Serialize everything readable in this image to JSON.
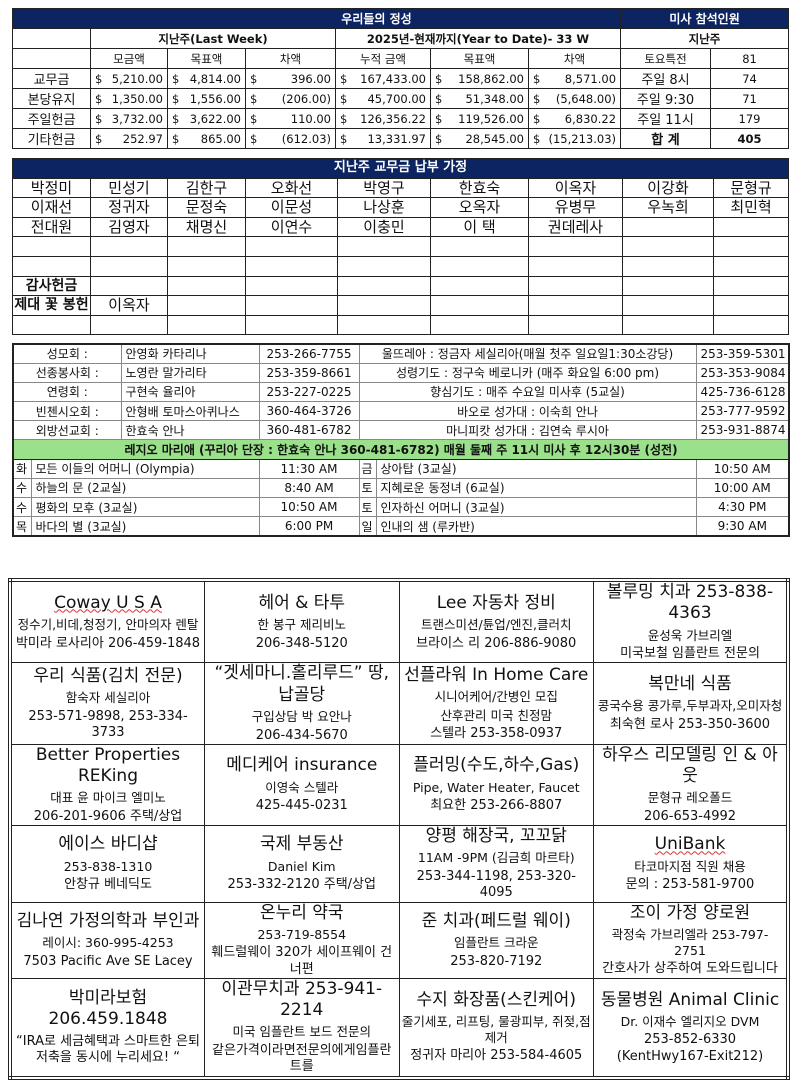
{
  "offerings": {
    "title": "우리들의 정성",
    "attendance_title": "미사 참석인원",
    "last_week": "지난주(Last  Week)",
    "ytd": "2025년-현재까지(Year  to  Date)-  33  W",
    "attendance_sub": "지난주",
    "cols": [
      "모금액",
      "목표액",
      "차액",
      "누적 금액",
      "목표액",
      "차액"
    ],
    "currency": "$",
    "rows": [
      {
        "label": "교무금",
        "v": [
          "5,210.00",
          "4,814.00",
          "396.00",
          "167,433.00",
          "158,862.00",
          "8,571.00"
        ],
        "att_label": "토요특전",
        "att": "81"
      },
      {
        "label": "본당유지",
        "v": [
          "1,350.00",
          "1,556.00",
          "(206.00)",
          "45,700.00",
          "51,348.00",
          "(5,648.00)"
        ],
        "att_label": "주일 9:30",
        "att": "71"
      },
      {
        "label": "주일헌금",
        "v": [
          "3,732.00",
          "3,622.00",
          "110.00",
          "126,356.22",
          "119,526.00",
          "6,830.22"
        ],
        "att_label": "주일 11시",
        "att": "179"
      },
      {
        "label": "기타헌금",
        "v": [
          "252.97",
          "865.00",
          "(612.03)",
          "13,331.97",
          "28,545.00",
          "(15,213.03)"
        ],
        "att_label": "합 계",
        "att": "405"
      }
    ],
    "att_first_label": "토요특전",
    "att_first": "81",
    "att_8_label": "주일 8시",
    "att_8": "74"
  },
  "families": {
    "title": "지난주 교무금 납부 가정",
    "rows": [
      [
        "박정미",
        "민성기",
        "김한구",
        "오화선",
        "박영구",
        "한효숙",
        "이옥자",
        "이강화",
        "문형규"
      ],
      [
        "이재선",
        "정귀자",
        "문정숙",
        "이문성",
        "나상훈",
        "오옥자",
        "유병무",
        "우녹희",
        "최민혁"
      ],
      [
        "전대원",
        "김영자",
        "채명신",
        "이연수",
        "이충민",
        "이  택",
        "권데레사",
        "",
        ""
      ],
      [
        "",
        "",
        "",
        "",
        "",
        "",
        "",
        "",
        ""
      ],
      [
        "",
        "",
        "",
        "",
        "",
        "",
        "",
        "",
        ""
      ],
      [
        "감사헌금",
        "",
        "",
        "",
        "",
        "",
        "",
        "",
        ""
      ],
      [
        "제대 꽃 봉헌",
        "이옥자",
        "",
        "",
        "",
        "",
        "",
        "",
        ""
      ],
      [
        "",
        "",
        "",
        "",
        "",
        "",
        "",
        "",
        ""
      ]
    ]
  },
  "ministries": {
    "rows": [
      {
        "label": "성모회  :",
        "name": "안영화 카타리나",
        "phone": "253-266-7755",
        "right": "울뜨레아 : 정금자 세실리아(매월 첫주 일요일1:30소강당)",
        "rphone": "253-359-5301"
      },
      {
        "label": "선종봉사회 :",
        "name": "노영란 말가리타",
        "phone": "253-359-8661",
        "right": "성령기도 : 정구숙 베로니카 (매주 화요일 6:00 pm)",
        "rphone": "253-353-9084"
      },
      {
        "label": "연령회  :",
        "name": "구현숙 율리아",
        "phone": "253-227-0225",
        "right": "향심기도 : 매주 수요일 미사후 (5교실)",
        "rphone": "425-736-6128"
      },
      {
        "label": "빈첸시오회 :",
        "name": "안형배 토마스아퀴나스",
        "phone": "360-464-3726",
        "right": "바오로 성가대 : 이숙희 안나",
        "rphone": "253-777-9592"
      },
      {
        "label": "외방선교회 :",
        "name": "한효숙 안나",
        "phone": "360-481-6782",
        "right": "마니피캇 성가대 : 김연숙 루시아",
        "rphone": "253-931-8874"
      }
    ],
    "legio": "레지오 마리애 (꾸리아 단장 : 한효숙 안나  360-481-6782)  매월 둘째 주 11시  미사 후 12시30분 (성전)",
    "schedule": [
      {
        "d1": "화",
        "n1": "모든 이들의 어머니 (Olympia)",
        "t1": "11:30 AM",
        "d2": "금",
        "n2": "상아탑 (3교실)",
        "t2": "10:50 AM"
      },
      {
        "d1": "수",
        "n1": "하늘의 문 (2교실)",
        "t1": "8:40 AM",
        "d2": "토",
        "n2": "지혜로운 동정녀 (6교실)",
        "t2": "10:00 AM"
      },
      {
        "d1": "수",
        "n1": "평화의 모후 (3교실)",
        "t1": "10:50 AM",
        "d2": "토",
        "n2": "인자하신 어머니 (3교실)",
        "t2": "4:30 PM"
      },
      {
        "d1": "목",
        "n1": "바다의 별 (3교실)",
        "t1": "6:00 PM",
        "d2": "일",
        "n2": "인내의 샘 (루카반)",
        "t2": "9:30 AM"
      }
    ]
  },
  "ads": [
    [
      [
        "Coway U S A",
        "정수기,비데,청정기, 안마의자 렌탈",
        "박미라 로사리아 206-459-1848"
      ],
      [
        "헤어  &  타투",
        "한 봉구 제리비노",
        "206-348-5120"
      ],
      [
        "Lee 자동차 정비",
        "트랜스미션/튠업/엔진,클러치",
        "브라이스 리  206-886-9080"
      ],
      [
        "볼루밍 치과 253-838-4363",
        "윤성욱 가브리엘",
        "미국보철 임플란트 전문의"
      ]
    ],
    [
      [
        "우리 식품(김치 전문)",
        "함숙자 세실리아",
        "253-571-9898, 253-334-3733"
      ],
      [
        "“겟세마니.홀리루드” 땅, 납골당",
        "구입상담  박 요안나",
        "206-434-5670"
      ],
      [
        "선플라워 In Home Care",
        "시니어케어/간병인 모집",
        "산후관리 미국 친정맘",
        "스텔라 253-358-0937"
      ],
      [
        "복만네 식품",
        "콩국수용 콩가루,두부과자,오미자청",
        "최숙현 로사 253-350-3600"
      ]
    ],
    [
      [
        "Better Properties REKing",
        "대표 윤 마이크 엘미노",
        "206-201-9606 주택/상업"
      ],
      [
        "메디케어 insurance",
        "이영숙 스텔라",
        "425-445-0231"
      ],
      [
        "플러밍(수도,하수,Gas)",
        "Pipe, Water Heater, Faucet",
        "최요한 253-266-8807"
      ],
      [
        "하우스 리모델링 인 & 아웃",
        "문형규 레오폴드",
        "206-653-4992"
      ]
    ],
    [
      [
        "에이스 바디샵",
        "253-838-1310",
        "안창규 베네딕도"
      ],
      [
        "국제 부동산",
        "Daniel Kim",
        "253-332-2120  주택/상업"
      ],
      [
        "양평 해장국, 꼬꼬닭",
        "11AM -9PM (김금희 마르타)",
        "253-344-1198, 253-320-4095"
      ],
      [
        "UniBank",
        "타코마지점 직원 채용",
        "문의 : 253-581-9700"
      ]
    ],
    [
      [
        "김나연 가정의학과 부인과",
        "레이시: 360-995-4253",
        "7503 Pacific Ave SE Lacey"
      ],
      [
        "온누리  약국",
        "253-719-8554",
        "훼드럴웨이 320가 세이프웨이 건너편"
      ],
      [
        "준 치과(페드럴 웨이)",
        "임플란트  크라운",
        "253-820-7192"
      ],
      [
        "조이 가정 양로원",
        "곽정숙 가브리엘라 253-797-2751",
        "간호사가 상주하여 도와드립니다"
      ]
    ],
    [
      [
        "박미라보험 206.459.1848",
        "“IRA로 세금혜택과 스마트한 은퇴저축을 동시에 누리세요! “"
      ],
      [
        "이관무치과 253-941-2214",
        "미국 임플란트 보드 전문의",
        "같은가격이라면전문의에게임플란트를"
      ],
      [
        "수지 화장품(스킨케어)",
        "줄기세포, 리프팅, 물광피부, 쥐젖,점제거",
        "정귀자 마리아 253-584-4605"
      ],
      [
        "동물병원 Animal Clinic",
        "Dr. 이재수 엘리지오 DVM",
        "253-852-6330 (KentHwy167-Exit212)"
      ]
    ]
  ]
}
